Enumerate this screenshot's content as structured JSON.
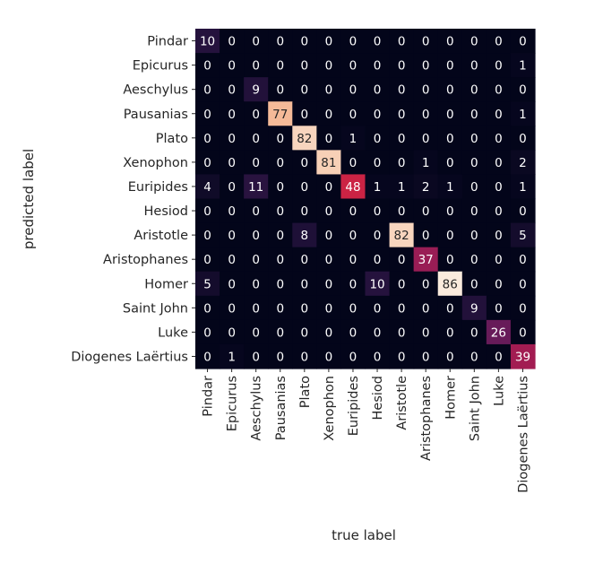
{
  "chart_data": {
    "type": "heatmap",
    "xlabel": "true label",
    "ylabel": "predicted label",
    "row_labels": [
      "Pindar",
      "Epicurus",
      "Aeschylus",
      "Pausanias",
      "Plato",
      "Xenophon",
      "Euripides",
      "Hesiod",
      "Aristotle",
      "Aristophanes",
      "Homer",
      "Saint John",
      "Luke",
      "Diogenes Laërtius"
    ],
    "col_labels": [
      "Pindar",
      "Epicurus",
      "Aeschylus",
      "Pausanias",
      "Plato",
      "Xenophon",
      "Euripides",
      "Hesiod",
      "Aristotle",
      "Aristophanes",
      "Homer",
      "Saint John",
      "Luke",
      "Diogenes Laërtius"
    ],
    "values": [
      [
        10,
        0,
        0,
        0,
        0,
        0,
        0,
        0,
        0,
        0,
        0,
        0,
        0,
        0
      ],
      [
        0,
        0,
        0,
        0,
        0,
        0,
        0,
        0,
        0,
        0,
        0,
        0,
        0,
        1
      ],
      [
        0,
        0,
        9,
        0,
        0,
        0,
        0,
        0,
        0,
        0,
        0,
        0,
        0,
        0
      ],
      [
        0,
        0,
        0,
        77,
        0,
        0,
        0,
        0,
        0,
        0,
        0,
        0,
        0,
        1
      ],
      [
        0,
        0,
        0,
        0,
        82,
        0,
        1,
        0,
        0,
        0,
        0,
        0,
        0,
        0
      ],
      [
        0,
        0,
        0,
        0,
        0,
        81,
        0,
        0,
        0,
        1,
        0,
        0,
        0,
        2
      ],
      [
        4,
        0,
        11,
        0,
        0,
        0,
        48,
        1,
        1,
        2,
        1,
        0,
        0,
        1
      ],
      [
        0,
        0,
        0,
        0,
        0,
        0,
        0,
        0,
        0,
        0,
        0,
        0,
        0,
        0
      ],
      [
        0,
        0,
        0,
        0,
        8,
        0,
        0,
        0,
        82,
        0,
        0,
        0,
        0,
        5
      ],
      [
        0,
        0,
        0,
        0,
        0,
        0,
        0,
        0,
        0,
        37,
        0,
        0,
        0,
        0
      ],
      [
        5,
        0,
        0,
        0,
        0,
        0,
        0,
        10,
        0,
        0,
        86,
        0,
        0,
        0
      ],
      [
        0,
        0,
        0,
        0,
        0,
        0,
        0,
        0,
        0,
        0,
        0,
        9,
        0,
        0
      ],
      [
        0,
        0,
        0,
        0,
        0,
        0,
        0,
        0,
        0,
        0,
        0,
        0,
        26,
        0
      ],
      [
        0,
        1,
        0,
        0,
        0,
        0,
        0,
        0,
        0,
        0,
        0,
        0,
        0,
        39
      ]
    ],
    "vmin": 0,
    "vmax": 86,
    "colormap": "rocket",
    "colorbar": false,
    "grid": false
  }
}
